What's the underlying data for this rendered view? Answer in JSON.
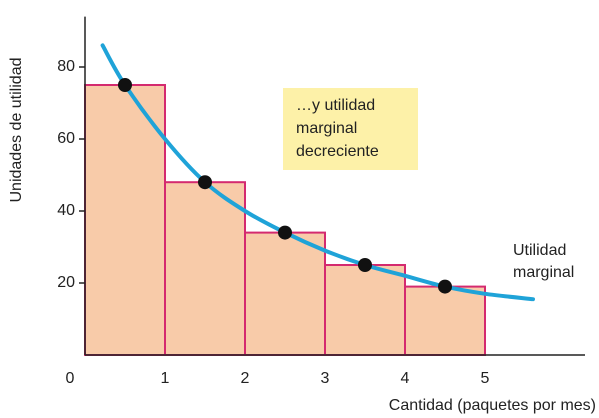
{
  "chart_data": {
    "type": "histogram",
    "bins": [
      0,
      1,
      2,
      3,
      4,
      5
    ],
    "values": [
      75,
      48,
      34,
      25,
      19
    ],
    "color": "#f8cba9",
    "edge_color": "#d42a6f",
    "point_color": "#111111",
    "xlim": [
      0,
      6.25
    ],
    "ylim": [
      0,
      94
    ],
    "xticks": [
      0,
      1,
      2,
      3,
      4,
      5
    ],
    "yticks": [
      20,
      40,
      60,
      80
    ],
    "xlabel": "Cantidad (paquetes por mes)",
    "ylabel": "Unidades de utilidad",
    "curve": {
      "name": [
        "Utilidad",
        "marginal"
      ],
      "color": "#1fa3d8",
      "x": [
        0.22,
        0.5,
        1,
        1.5,
        2,
        2.5,
        3,
        3.5,
        4,
        4.5,
        5,
        5.6
      ],
      "values": [
        86,
        75,
        60,
        48,
        40,
        34,
        29,
        25,
        22,
        19,
        17,
        15.5
      ]
    },
    "annotation": [
      "…y utilidad",
      "marginal",
      "decreciente"
    ],
    "annotation_color": "#fdf1a8"
  }
}
